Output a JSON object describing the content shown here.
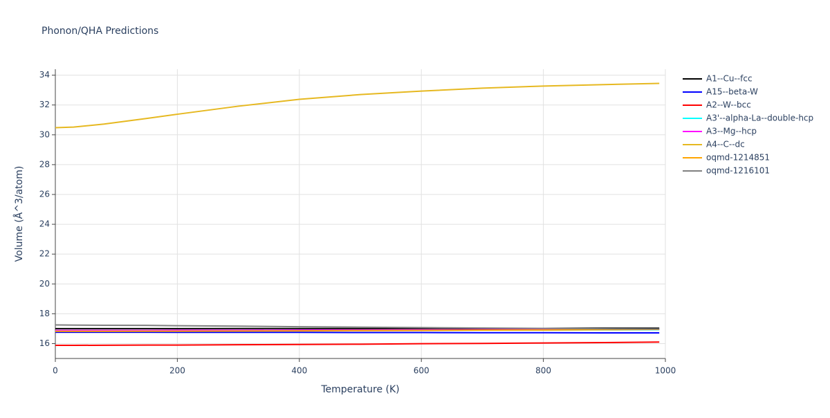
{
  "chart_data": {
    "type": "line",
    "title": "Phonon/QHA Predictions",
    "x_label": "Temperature (K)",
    "y_label": "Volume (Å^3/atom)",
    "x": [
      0,
      30,
      80,
      150,
      200,
      300,
      400,
      500,
      600,
      700,
      800,
      900,
      990
    ],
    "series": [
      {
        "name": "A1--Cu--fcc",
        "color": "#000000",
        "values": [
          17.0,
          17.0,
          17.0,
          17.0,
          17.0,
          17.01,
          17.01,
          17.01,
          17.02,
          17.02,
          17.02,
          17.03,
          17.03
        ]
      },
      {
        "name": "A15--beta-W",
        "color": "#0000ff",
        "values": [
          16.76,
          16.76,
          16.76,
          16.76,
          16.75,
          16.75,
          16.75,
          16.74,
          16.74,
          16.73,
          16.73,
          16.72,
          16.72
        ]
      },
      {
        "name": "A2--W--bcc",
        "color": "#ff0000",
        "values": [
          15.88,
          15.88,
          15.89,
          15.9,
          15.9,
          15.92,
          15.94,
          15.96,
          15.99,
          16.01,
          16.04,
          16.07,
          16.1
        ]
      },
      {
        "name": "A3'--alpha-La--double-hcp",
        "color": "#00ffff",
        "values": [
          16.85,
          16.85,
          16.85,
          16.85,
          16.86,
          16.86,
          16.87,
          16.88,
          16.89,
          16.9,
          16.91,
          16.92,
          16.93
        ]
      },
      {
        "name": "A3--Mg--hcp",
        "color": "#ff00ff",
        "values": [
          16.88,
          16.88,
          16.88,
          16.88,
          16.89,
          16.89,
          16.9,
          16.91,
          16.92,
          16.93,
          16.94,
          16.95,
          16.96
        ]
      },
      {
        "name": "A4--C--dc",
        "color": "#e6b820",
        "values": [
          30.48,
          30.52,
          30.72,
          31.1,
          31.38,
          31.92,
          32.38,
          32.7,
          32.93,
          33.13,
          33.27,
          33.37,
          33.45
        ]
      },
      {
        "name": "oqmd-1214851",
        "color": "#ffa500",
        "values": [
          16.82,
          16.82,
          16.82,
          16.83,
          16.83,
          16.84,
          16.85,
          16.87,
          16.88,
          16.9,
          16.91,
          16.93,
          16.95
        ]
      },
      {
        "name": "oqmd-1216101",
        "color": "#808080",
        "values": [
          17.25,
          17.24,
          17.23,
          17.22,
          17.2,
          17.17,
          17.13,
          17.1,
          17.07,
          17.04,
          17.02,
          16.99,
          16.97
        ]
      }
    ],
    "xlim": [
      0,
      1000
    ],
    "xticks": [
      0,
      200,
      400,
      600,
      800,
      1000
    ],
    "ylim": [
      15,
      34.4
    ],
    "yticks": [
      16,
      18,
      20,
      22,
      24,
      26,
      28,
      30,
      32,
      34
    ],
    "grid": true
  }
}
